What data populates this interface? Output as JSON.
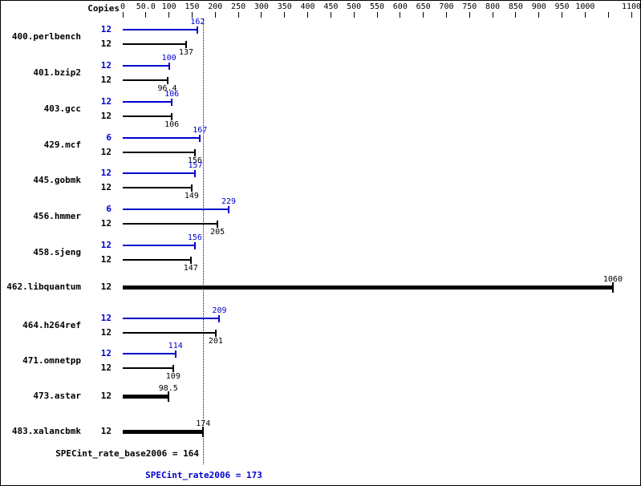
{
  "chart_data": {
    "type": "bar",
    "orientation": "horizontal",
    "copies_header": "Copies",
    "axis": {
      "max": 1100,
      "ticks": [
        {
          "v": 0,
          "label": "0"
        },
        {
          "v": 50,
          "label": "50.0"
        },
        {
          "v": 100,
          "label": "100"
        },
        {
          "v": 150,
          "label": "150"
        },
        {
          "v": 200,
          "label": "200"
        },
        {
          "v": 250,
          "label": "250"
        },
        {
          "v": 300,
          "label": "300"
        },
        {
          "v": 350,
          "label": "350"
        },
        {
          "v": 400,
          "label": "400"
        },
        {
          "v": 450,
          "label": "450"
        },
        {
          "v": 500,
          "label": "500"
        },
        {
          "v": 550,
          "label": "550"
        },
        {
          "v": 600,
          "label": "600"
        },
        {
          "v": 650,
          "label": "650"
        },
        {
          "v": 700,
          "label": "700"
        },
        {
          "v": 750,
          "label": "750"
        },
        {
          "v": 800,
          "label": "800"
        },
        {
          "v": 850,
          "label": "850"
        },
        {
          "v": 900,
          "label": "900"
        },
        {
          "v": 950,
          "label": "950"
        },
        {
          "v": 1000,
          "label": "1000"
        },
        {
          "v": 1050,
          "label": ""
        },
        {
          "v": 1100,
          "label": "1100"
        }
      ]
    },
    "colors": {
      "peak": "#0000cd",
      "base": "#000000"
    },
    "benchmarks": [
      {
        "name": "400.perlbench",
        "bars": [
          {
            "type": "peak",
            "copies": "12",
            "value": 162,
            "label": "162",
            "label_side": "above"
          },
          {
            "type": "base",
            "copies": "12",
            "value": 137,
            "label": "137",
            "label_side": "below"
          }
        ]
      },
      {
        "name": "401.bzip2",
        "bars": [
          {
            "type": "peak",
            "copies": "12",
            "value": 100,
            "label": "100",
            "label_side": "above"
          },
          {
            "type": "base",
            "copies": "12",
            "value": 96.4,
            "label": "96.4",
            "label_side": "below"
          }
        ]
      },
      {
        "name": "403.gcc",
        "bars": [
          {
            "type": "peak",
            "copies": "12",
            "value": 106,
            "label": "106",
            "label_side": "above"
          },
          {
            "type": "base",
            "copies": "12",
            "value": 106,
            "label": "106",
            "label_side": "below"
          }
        ]
      },
      {
        "name": "429.mcf",
        "bars": [
          {
            "type": "peak",
            "copies": "6",
            "value": 167,
            "label": "167",
            "label_side": "above"
          },
          {
            "type": "base",
            "copies": "12",
            "value": 156,
            "label": "156",
            "label_side": "below"
          }
        ]
      },
      {
        "name": "445.gobmk",
        "bars": [
          {
            "type": "peak",
            "copies": "12",
            "value": 157,
            "label": "157",
            "label_side": "above"
          },
          {
            "type": "base",
            "copies": "12",
            "value": 149,
            "label": "149",
            "label_side": "below"
          }
        ]
      },
      {
        "name": "456.hmmer",
        "bars": [
          {
            "type": "peak",
            "copies": "6",
            "value": 229,
            "label": "229",
            "label_side": "above"
          },
          {
            "type": "base",
            "copies": "12",
            "value": 205,
            "label": "205",
            "label_side": "below"
          }
        ]
      },
      {
        "name": "458.sjeng",
        "bars": [
          {
            "type": "peak",
            "copies": "12",
            "value": 156,
            "label": "156",
            "label_side": "above"
          },
          {
            "type": "base",
            "copies": "12",
            "value": 147,
            "label": "147",
            "label_side": "below"
          }
        ]
      },
      {
        "name": "462.libquantum",
        "bars": [
          {
            "type": "base",
            "thick": true,
            "copies": "12",
            "value": 1060,
            "label": "1060",
            "label_side": "above"
          }
        ]
      },
      {
        "name": "464.h264ref",
        "bars": [
          {
            "type": "peak",
            "copies": "12",
            "value": 209,
            "label": "209",
            "label_side": "above"
          },
          {
            "type": "base",
            "copies": "12",
            "value": 201,
            "label": "201",
            "label_side": "below"
          }
        ]
      },
      {
        "name": "471.omnetpp",
        "bars": [
          {
            "type": "peak",
            "copies": "12",
            "value": 114,
            "label": "114",
            "label_side": "above"
          },
          {
            "type": "base",
            "copies": "12",
            "value": 109,
            "label": "109",
            "label_side": "below"
          }
        ]
      },
      {
        "name": "473.astar",
        "bars": [
          {
            "type": "base",
            "thick": true,
            "copies": "12",
            "value": 98.5,
            "label": "98.5",
            "label_side": "above"
          }
        ]
      },
      {
        "name": "483.xalancbmk",
        "bars": [
          {
            "type": "base",
            "thick": true,
            "copies": "12",
            "value": 174,
            "label": "174",
            "label_side": "above"
          }
        ]
      }
    ],
    "summary": {
      "base_text": "SPECint_rate_base2006 = 164",
      "base_value": 164,
      "peak_text": "SPECint_rate2006 = 173",
      "peak_value": 173
    }
  }
}
